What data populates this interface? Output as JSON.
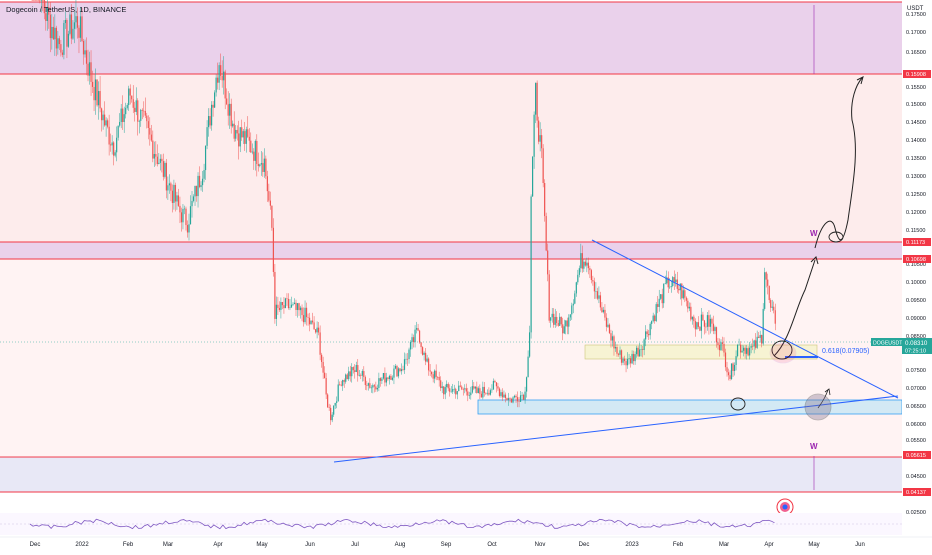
{
  "header": {
    "symbol_line": "Dogecoin / TetherUS, 1D, BINANCE"
  },
  "axis": {
    "currency": "USDT",
    "ticks": [
      "0.17500",
      "0.17000",
      "0.16500",
      "0.15500",
      "0.15000",
      "0.14500",
      "0.14000",
      "0.13500",
      "0.13000",
      "0.12500",
      "0.12000",
      "0.11500",
      "0.10500",
      "0.10000",
      "0.09500",
      "0.09000",
      "0.08500",
      "0.07500",
      "0.07000",
      "0.06500",
      "0.06000",
      "0.05500",
      "0.04500",
      "0.02500"
    ],
    "price_labels": [
      "0.15908",
      "0.11173",
      "0.10698",
      "0.05615",
      "0.04137"
    ],
    "current_symbol": "DOGEUSDT",
    "current_price": "0.08310",
    "countdown": "07:25:10",
    "months": [
      "Dec",
      "2022",
      "Feb",
      "Mar",
      "Apr",
      "May",
      "Jun",
      "Jul",
      "Aug",
      "Sep",
      "Oct",
      "Nov",
      "Dec",
      "2023",
      "Feb",
      "Mar",
      "Apr",
      "May",
      "Jun"
    ]
  },
  "annotations": {
    "fib_label": "0.618(0.07905)",
    "w_marker_top": "W",
    "w_marker_bottom": "W"
  },
  "colors": {
    "up": "#26a69a",
    "down": "#ef5350",
    "trendline": "#2962ff",
    "zone_purple": "#e1bee7",
    "zone_pink": "#fde8e8",
    "zone_blue": "#d4ecf7",
    "zone_yellow": "#f7f3d4",
    "level_red": "#f23645"
  },
  "chart_data": {
    "type": "candlestick",
    "symbol": "DOGEUSDT",
    "interval": "1D",
    "exchange": "BINANCE",
    "ylim": [
      0.025,
      0.178
    ],
    "x_range": [
      "2021-12",
      "2023-06"
    ],
    "path": [
      [
        "2021-12-01",
        0.2
      ],
      [
        "2021-12-10",
        0.175
      ],
      [
        "2021-12-20",
        0.165
      ],
      [
        "2022-01-01",
        0.172
      ],
      [
        "2022-01-10",
        0.155
      ],
      [
        "2022-01-20",
        0.14
      ],
      [
        "2022-01-25",
        0.135
      ],
      [
        "2022-02-05",
        0.15
      ],
      [
        "2022-02-15",
        0.14
      ],
      [
        "2022-03-01",
        0.125
      ],
      [
        "2022-03-10",
        0.115
      ],
      [
        "2022-03-15",
        0.112
      ],
      [
        "2022-03-25",
        0.128
      ],
      [
        "2022-04-01",
        0.15
      ],
      [
        "2022-04-05",
        0.16
      ],
      [
        "2022-04-15",
        0.14
      ],
      [
        "2022-04-25",
        0.135
      ],
      [
        "2022-05-05",
        0.13
      ],
      [
        "2022-05-10",
        0.11
      ],
      [
        "2022-05-12",
        0.085
      ],
      [
        "2022-05-20",
        0.087
      ],
      [
        "2022-06-01",
        0.084
      ],
      [
        "2022-06-10",
        0.078
      ],
      [
        "2022-06-15",
        0.06
      ],
      [
        "2022-06-18",
        0.054
      ],
      [
        "2022-06-25",
        0.065
      ],
      [
        "2022-07-05",
        0.068
      ],
      [
        "2022-07-15",
        0.063
      ],
      [
        "2022-07-25",
        0.066
      ],
      [
        "2022-08-05",
        0.069
      ],
      [
        "2022-08-15",
        0.08
      ],
      [
        "2022-08-20",
        0.07
      ],
      [
        "2022-09-01",
        0.062
      ],
      [
        "2022-09-15",
        0.062
      ],
      [
        "2022-09-25",
        0.061
      ],
      [
        "2022-10-05",
        0.063
      ],
      [
        "2022-10-15",
        0.059
      ],
      [
        "2022-10-25",
        0.061
      ],
      [
        "2022-10-28",
        0.08
      ],
      [
        "2022-10-29",
        0.12
      ],
      [
        "2022-11-01",
        0.15
      ],
      [
        "2022-11-05",
        0.13
      ],
      [
        "2022-11-10",
        0.085
      ],
      [
        "2022-11-20",
        0.08
      ],
      [
        "2022-11-25",
        0.088
      ],
      [
        "2022-12-01",
        0.1
      ],
      [
        "2022-12-05",
        0.102
      ],
      [
        "2022-12-15",
        0.085
      ],
      [
        "2022-12-25",
        0.073
      ],
      [
        "2023-01-01",
        0.07
      ],
      [
        "2023-01-10",
        0.075
      ],
      [
        "2023-01-20",
        0.086
      ],
      [
        "2023-01-28",
        0.094
      ],
      [
        "2023-02-05",
        0.092
      ],
      [
        "2023-02-15",
        0.082
      ],
      [
        "2023-02-25",
        0.082
      ],
      [
        "2023-03-05",
        0.074
      ],
      [
        "2023-03-10",
        0.066
      ],
      [
        "2023-03-15",
        0.075
      ],
      [
        "2023-03-25",
        0.074
      ],
      [
        "2023-03-31",
        0.078
      ],
      [
        "2023-04-02",
        0.098
      ],
      [
        "2023-04-06",
        0.085
      ],
      [
        "2023-04-09",
        0.083
      ]
    ]
  }
}
